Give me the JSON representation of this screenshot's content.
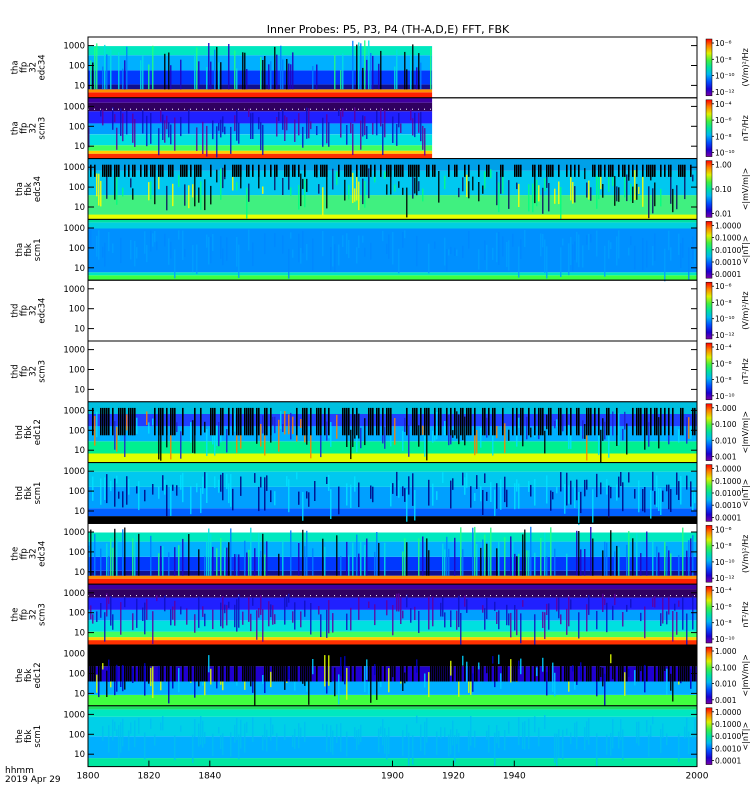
{
  "chart_data": {
    "type": "heatmap",
    "title": "Inner Probes: P5, P3, P4 (TH-A,D,E) FFT, FBK",
    "x_axis": {
      "range": [
        1800,
        2000
      ],
      "ticks": [
        "1800",
        "1820",
        "1840",
        "1900",
        "1920",
        "1940",
        "2000"
      ],
      "label_line1": "hhmm",
      "label_line2": "2019 Apr 29"
    },
    "y_ticks": [
      "1000",
      "100",
      "10"
    ],
    "scale": "log",
    "panels": [
      {
        "id": "tha-ffp32-edc34",
        "ylabel": [
          "tha",
          "ffp",
          "32",
          "edc34"
        ],
        "unit": "(V/m)²/Hz",
        "cb_ticks": [
          "10⁻⁶",
          "10⁻⁸",
          "10⁻¹⁰",
          "10⁻¹²"
        ],
        "data_end": 1913,
        "style": "edc"
      },
      {
        "id": "tha-ffp32-scm3",
        "ylabel": [
          "tha",
          "ffp",
          "32",
          "scm3"
        ],
        "unit": "nT²/Hz",
        "cb_ticks": [
          "10⁻⁴",
          "10⁻⁶",
          "10⁻⁸",
          "10⁻¹⁰"
        ],
        "data_end": 1913,
        "style": "scm"
      },
      {
        "id": "tha-fbk-edc34",
        "ylabel": [
          "tha",
          "fbk",
          "edc34"
        ],
        "unit": "<|mV/m|>",
        "cb_ticks": [
          "1.00",
          "0.10",
          "0.01"
        ],
        "data_end": 2000,
        "style": "fbke"
      },
      {
        "id": "tha-fbk-scm1",
        "ylabel": [
          "tha",
          "fbk",
          "scm1"
        ],
        "unit": "<|nT|>",
        "cb_ticks": [
          "1.0000",
          "0.1000",
          "0.0100",
          "0.0010",
          "0.0001"
        ],
        "data_end": 2000,
        "style": "fbks"
      },
      {
        "id": "thd-ffp32-edc34",
        "ylabel": [
          "thd",
          "ffp",
          "32",
          "edc34"
        ],
        "unit": "(V/m)²/Hz",
        "cb_ticks": [
          "10⁻⁶",
          "10⁻⁸",
          "10⁻¹⁰",
          "10⁻¹²"
        ],
        "data_end": null,
        "style": "none"
      },
      {
        "id": "thd-ffp32-scm3",
        "ylabel": [
          "thd",
          "ffp",
          "32",
          "scm3"
        ],
        "unit": "nT²/Hz",
        "cb_ticks": [
          "10⁻⁴",
          "10⁻⁶",
          "10⁻⁸",
          "10⁻¹⁰"
        ],
        "data_end": null,
        "style": "none"
      },
      {
        "id": "thd-fbk-edc12",
        "ylabel": [
          "thd",
          "fbk",
          "edc12"
        ],
        "unit": "<|mV/m|>",
        "cb_ticks": [
          "1.000",
          "0.100",
          "0.010",
          "0.001"
        ],
        "data_end": 2000,
        "style": "fbke2"
      },
      {
        "id": "thd-fbk-scm1",
        "ylabel": [
          "thd",
          "fbk",
          "scm1"
        ],
        "unit": "<|nT|>",
        "cb_ticks": [
          "1.0000",
          "0.1000",
          "0.0100",
          "0.0010",
          "0.0001"
        ],
        "data_end": 2000,
        "style": "fbks2"
      },
      {
        "id": "the-ffp32-edc34",
        "ylabel": [
          "the",
          "ffp",
          "32",
          "edc34"
        ],
        "unit": "(V/m)²/Hz",
        "cb_ticks": [
          "10⁻⁶",
          "10⁻⁸",
          "10⁻¹⁰",
          "10⁻¹²"
        ],
        "data_end": 2000,
        "style": "edc"
      },
      {
        "id": "the-ffp32-scm3",
        "ylabel": [
          "the",
          "ffp",
          "32",
          "scm3"
        ],
        "unit": "nT²/Hz",
        "cb_ticks": [
          "10⁻⁴",
          "10⁻⁶",
          "10⁻⁸",
          "10⁻¹⁰"
        ],
        "data_end": 2000,
        "style": "scm"
      },
      {
        "id": "the-fbk-edc12",
        "ylabel": [
          "the",
          "fbk",
          "edc12"
        ],
        "unit": "<|mV/m|>",
        "cb_ticks": [
          "1.000",
          "0.100",
          "0.010",
          "0.001"
        ],
        "data_end": 2000,
        "style": "fbke3"
      },
      {
        "id": "the-fbk-scm1",
        "ylabel": [
          "the",
          "fbk",
          "scm1"
        ],
        "unit": "<|nT|>",
        "cb_ticks": [
          "1.0000",
          "0.1000",
          "0.0100",
          "0.0010",
          "0.0001"
        ],
        "data_end": 2000,
        "style": "fbks3"
      }
    ]
  }
}
